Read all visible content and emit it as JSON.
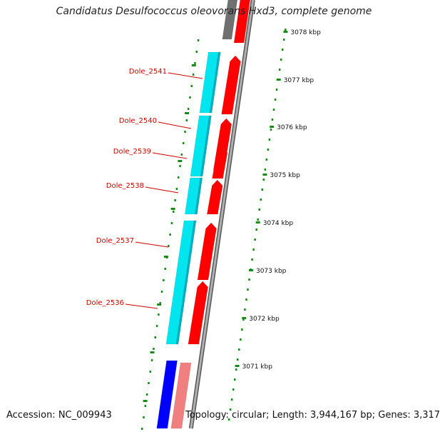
{
  "title": "Candidatus Desulfococcus oleovorans Hxd3, complete genome",
  "accession": "Accession: NC_009943",
  "summary": "Topology: circular; Length: 3,944,167 bp; Genes: 3,317",
  "colors": {
    "forward_cds": "#ff0000",
    "forward_cds_light": "#f08080",
    "reverse_cds_cyan": "#00e5ee",
    "reverse_cds_blue": "#0000ff",
    "other_feature": "#707070",
    "backbone": "#8a8a8a",
    "label": "#cc0000",
    "ticks": "#1a8a1a"
  },
  "scale_labels": [
    "3078 kbp",
    "3077 kbp",
    "3076 kbp",
    "3075 kbp",
    "3074 kbp",
    "3073 kbp",
    "3072 kbp",
    "3071 kbp"
  ],
  "gene_labels": [
    "Dole_2541",
    "Dole_2540",
    "Dole_2539",
    "Dole_2538",
    "Dole_2537",
    "Dole_2536"
  ]
}
